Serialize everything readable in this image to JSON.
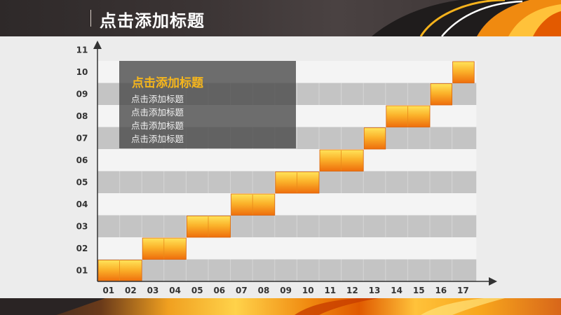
{
  "header": {
    "title": "点击添加标题"
  },
  "info_box": {
    "title": "点击添加标题",
    "lines": [
      "点击添加标题",
      "点击添加标题",
      "点击添加标题",
      "点击添加标题"
    ]
  },
  "colors": {
    "accent_orange": "#f39a18",
    "accent_yellow": "#ffd84a",
    "band_gray": "#c4c4c4",
    "band_white": "#f4f4f4",
    "title_gold": "#f6b61c"
  },
  "chart_data": {
    "type": "bar",
    "title": "",
    "xlabel": "",
    "ylabel": "",
    "x_ticks": [
      "01",
      "02",
      "03",
      "04",
      "05",
      "06",
      "07",
      "08",
      "09",
      "10",
      "11",
      "12",
      "13",
      "14",
      "15",
      "16",
      "17"
    ],
    "y_ticks": [
      "01",
      "02",
      "03",
      "04",
      "05",
      "06",
      "07",
      "08",
      "09",
      "10",
      "11"
    ],
    "ylim": [
      0,
      11
    ],
    "grid": "alternating horizontal bands",
    "bars": [
      {
        "row": 1,
        "start": 1,
        "end": 2
      },
      {
        "row": 2,
        "start": 3,
        "end": 4
      },
      {
        "row": 3,
        "start": 5,
        "end": 6
      },
      {
        "row": 4,
        "start": 7,
        "end": 8
      },
      {
        "row": 5,
        "start": 9,
        "end": 10
      },
      {
        "row": 6,
        "start": 11,
        "end": 12
      },
      {
        "row": 7,
        "start": 13,
        "end": 13
      },
      {
        "row": 8,
        "start": 14,
        "end": 15
      },
      {
        "row": 9,
        "start": 16,
        "end": 16
      },
      {
        "row": 10,
        "start": 17,
        "end": 17
      }
    ]
  }
}
